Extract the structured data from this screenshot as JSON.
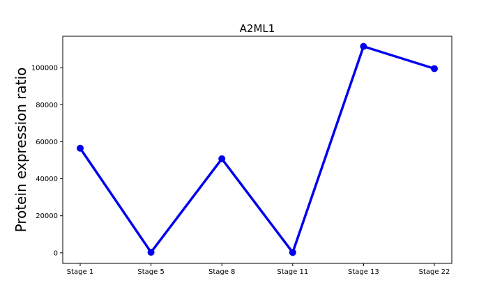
{
  "chart_data": {
    "type": "line",
    "title": "A2ML1",
    "xlabel": "",
    "ylabel": "Protein expression ratio",
    "categories": [
      "Stage 1",
      "Stage 5",
      "Stage 8",
      "Stage 11",
      "Stage 13",
      "Stage 22"
    ],
    "series": [
      {
        "values": [
          56500,
          300,
          50800,
          200,
          111500,
          99500
        ],
        "color": "#0000ee"
      }
    ],
    "yticks": [
      0,
      20000,
      40000,
      60000,
      80000,
      100000
    ],
    "ytick_labels": [
      "0",
      "20000",
      "40000",
      "60000",
      "80000",
      "100000"
    ],
    "ylim": [
      -5700,
      117000
    ],
    "grid": false,
    "legend": "none"
  }
}
